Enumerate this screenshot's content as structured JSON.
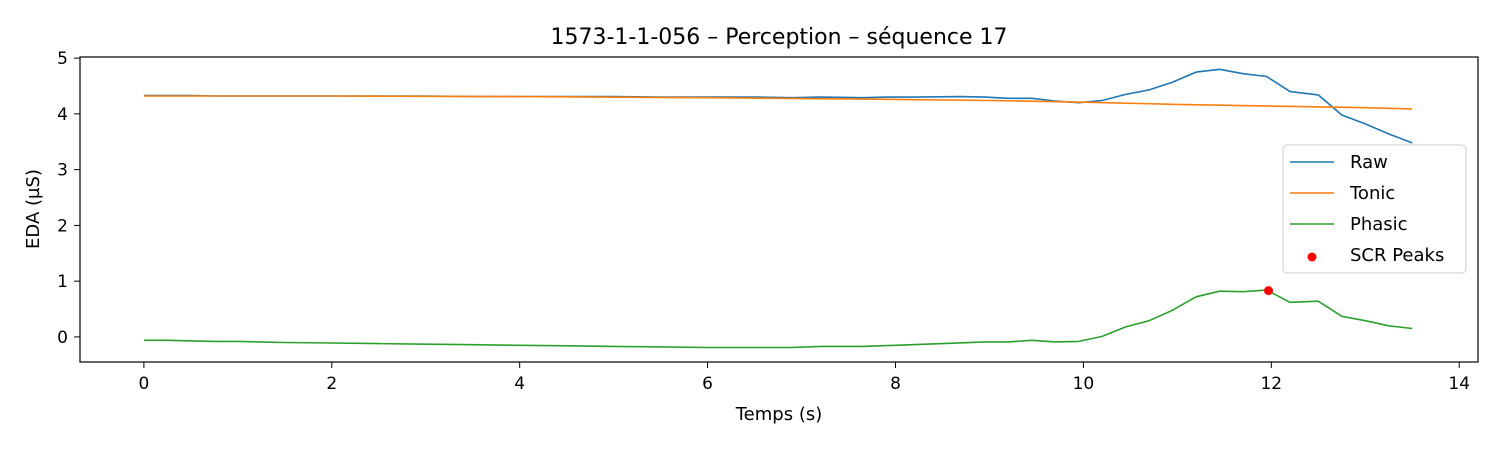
{
  "chart_data": {
    "type": "line",
    "title": "1573-1-1-056 – Perception – séquence 17",
    "xlabel": "Temps (s)",
    "ylabel": "EDA (µS)",
    "xlim": [
      -0.68,
      14.2
    ],
    "ylim": [
      -0.45,
      5.02
    ],
    "xticks": [
      0,
      2,
      4,
      6,
      8,
      10,
      12,
      14
    ],
    "yticks": [
      0,
      1,
      2,
      3,
      4,
      5
    ],
    "grid": false,
    "legend_position": "center-right",
    "series": [
      {
        "name": "Raw",
        "color": "#1f77b4",
        "x": [
          0,
          0.5,
          0.75,
          1,
          1.5,
          2,
          2.5,
          3,
          3.5,
          4,
          4.5,
          5,
          5.5,
          6,
          6.5,
          6.9,
          7.2,
          7.65,
          7.9,
          8.2,
          8.7,
          8.95,
          9.2,
          9.45,
          9.7,
          9.95,
          10.2,
          10.45,
          10.7,
          10.95,
          11.2,
          11.45,
          11.7,
          11.95,
          12.2,
          12.5,
          12.75,
          13,
          13.25,
          13.5
        ],
        "y": [
          4.33,
          4.33,
          4.32,
          4.32,
          4.32,
          4.32,
          4.32,
          4.32,
          4.31,
          4.31,
          4.31,
          4.31,
          4.3,
          4.3,
          4.3,
          4.29,
          4.3,
          4.29,
          4.3,
          4.3,
          4.31,
          4.3,
          4.28,
          4.28,
          4.23,
          4.2,
          4.24,
          4.35,
          4.43,
          4.57,
          4.75,
          4.8,
          4.72,
          4.67,
          4.4,
          4.34,
          3.98,
          3.82,
          3.64,
          3.48
        ]
      },
      {
        "name": "Tonic",
        "color": "#ff7f0e",
        "x": [
          0,
          2,
          4,
          6,
          8,
          9,
          10,
          11,
          12,
          13,
          13.5
        ],
        "y": [
          4.32,
          4.32,
          4.31,
          4.29,
          4.26,
          4.24,
          4.21,
          4.17,
          4.14,
          4.11,
          4.09
        ]
      },
      {
        "name": "Phasic",
        "color": "#2ca02c",
        "x": [
          0,
          0.25,
          0.75,
          1,
          1.5,
          2,
          2.5,
          3,
          3.5,
          4,
          4.5,
          5,
          5.5,
          6,
          6.5,
          6.9,
          7.2,
          7.65,
          8,
          8.5,
          8.95,
          9.2,
          9.45,
          9.7,
          9.95,
          10.2,
          10.45,
          10.7,
          10.95,
          11.2,
          11.45,
          11.7,
          11.95,
          12.2,
          12.5,
          12.75,
          13,
          13.25,
          13.5
        ],
        "y": [
          -0.06,
          -0.06,
          -0.08,
          -0.08,
          -0.1,
          -0.11,
          -0.12,
          -0.13,
          -0.14,
          -0.15,
          -0.16,
          -0.17,
          -0.18,
          -0.19,
          -0.19,
          -0.19,
          -0.17,
          -0.17,
          -0.15,
          -0.12,
          -0.09,
          -0.09,
          -0.06,
          -0.09,
          -0.08,
          0.01,
          0.18,
          0.29,
          0.48,
          0.72,
          0.82,
          0.81,
          0.84,
          0.62,
          0.64,
          0.37,
          0.29,
          0.2,
          0.15
        ]
      }
    ],
    "scatter": [
      {
        "name": "SCR Peaks",
        "color": "#ff0000",
        "x": [
          11.97
        ],
        "y": [
          0.83
        ]
      }
    ]
  }
}
